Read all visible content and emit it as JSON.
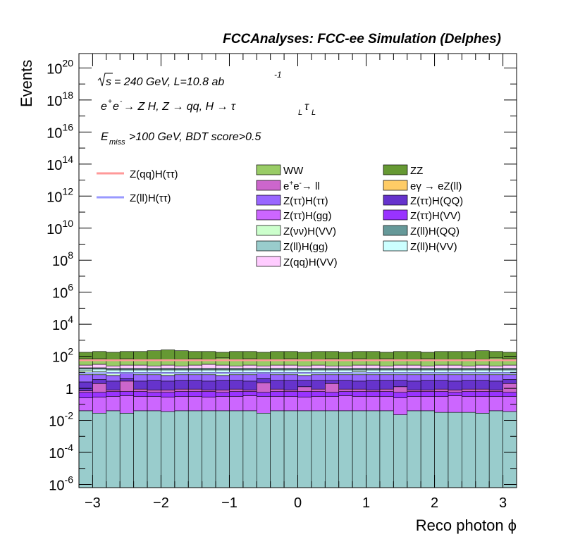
{
  "chart_data": {
    "type": "bar",
    "title": "FCCAnalyses: FCC-ee Simulation (Delphes)",
    "xlabel": "Reco photon ϕ",
    "ylabel": "Events",
    "xlim": [
      -3.2,
      3.2
    ],
    "ylim_log10": [
      -6.2,
      20.9
    ],
    "y_scale": "log",
    "stacked": true,
    "x_ticks": [
      "−3",
      "−2",
      "−1",
      "0",
      "1",
      "2",
      "3"
    ],
    "y_ticks": [
      {
        "base": "10",
        "exp": "20"
      },
      {
        "base": "10",
        "exp": "18"
      },
      {
        "base": "10",
        "exp": "16"
      },
      {
        "base": "10",
        "exp": "14"
      },
      {
        "base": "10",
        "exp": "12"
      },
      {
        "base": "10",
        "exp": "10"
      },
      {
        "base": "10",
        "exp": "8"
      },
      {
        "base": "10",
        "exp": "6"
      },
      {
        "base": "10",
        "exp": "4"
      },
      {
        "base": "10",
        "exp": "2"
      },
      {
        "base": "1",
        "exp": ""
      },
      {
        "base": "10",
        "exp": "-2"
      },
      {
        "base": "10",
        "exp": "-4"
      },
      {
        "base": "10",
        "exp": "-6"
      }
    ],
    "bin_edges": [
      -3.2,
      -3.0,
      -2.8,
      -2.6,
      -2.4,
      -2.2,
      -2.0,
      -1.8,
      -1.6,
      -1.4,
      -1.2,
      -1.0,
      -0.8,
      -0.6,
      -0.4,
      -0.2,
      0.0,
      0.2,
      0.4,
      0.6,
      0.8,
      1.0,
      1.2,
      1.4,
      1.6,
      1.8,
      2.0,
      2.2,
      2.4,
      2.6,
      2.8,
      3.0,
      3.2
    ],
    "stack_bottom_log10": -6.2,
    "stack_order": [
      "Z(ll)H(gg)",
      "eγ → eZ(ll)",
      "Z(ττ)H(gg)",
      "Z(ττ)H(VV)",
      "e+e- → ll",
      "Z(ττ)H(QQ)",
      "Z(ττ)H(ττ)",
      "Z(νν)H(VV)",
      "Z(ll)H(VV)",
      "Z(ll)H(QQ)",
      "Z(qq)H(VV)",
      "WW",
      "ZZ"
    ],
    "stack_top_log10": [
      [
        -1.4,
        -1.4,
        -1.4,
        -1.55,
        -1.4,
        -1.4,
        -1.45,
        -1.4,
        -1.4,
        -1.4,
        -1.4,
        -1.4,
        -1.4,
        -1.4,
        -1.4,
        -1.4,
        -1.4,
        -1.4,
        -1.4,
        -1.4,
        -1.4,
        -1.4,
        -1.4,
        -1.4,
        -1.4,
        -1.4,
        -1.4,
        -1.4,
        -1.4,
        -1.55,
        -1.4,
        -1.45
      ],
      [
        -1.4,
        -1.55,
        -1.4,
        -1.55,
        -1.4,
        -1.4,
        -1.45,
        -1.4,
        -1.4,
        -1.4,
        -1.4,
        -1.4,
        -1.4,
        -1.55,
        -1.4,
        -1.4,
        -1.4,
        -1.4,
        -1.4,
        -1.4,
        -1.4,
        -1.4,
        -1.4,
        -1.65,
        -1.4,
        -1.4,
        -1.5,
        -1.5,
        -1.5,
        -1.55,
        -1.4,
        -1.45
      ],
      [
        -0.6,
        -0.55,
        -0.5,
        -0.45,
        -0.5,
        -0.5,
        -0.55,
        -0.5,
        -0.5,
        -0.55,
        -0.5,
        -0.5,
        -0.45,
        -0.5,
        -0.5,
        -0.5,
        -0.55,
        -0.5,
        -0.5,
        -0.45,
        -0.5,
        -0.5,
        -0.5,
        -0.6,
        -0.5,
        -0.5,
        -0.5,
        -0.45,
        -0.5,
        -0.5,
        -0.5,
        -0.5
      ],
      [
        -0.25,
        -0.25,
        -0.2,
        -0.2,
        -0.2,
        -0.25,
        -0.25,
        -0.2,
        -0.2,
        -0.2,
        -0.25,
        -0.2,
        -0.2,
        -0.25,
        -0.2,
        -0.2,
        -0.2,
        -0.2,
        -0.25,
        -0.2,
        -0.2,
        -0.2,
        -0.2,
        -0.25,
        -0.2,
        -0.2,
        -0.2,
        -0.25,
        -0.2,
        -0.2,
        -0.2,
        -0.25
      ],
      [
        -0.15,
        0.3,
        -0.1,
        0.45,
        -0.05,
        -0.1,
        -0.1,
        -0.05,
        -0.05,
        -0.1,
        -0.1,
        -0.05,
        -0.1,
        0.35,
        -0.05,
        -0.1,
        0.1,
        -0.05,
        0.3,
        -0.05,
        -0.05,
        -0.1,
        -0.05,
        0.1,
        -0.1,
        -0.1,
        -0.05,
        -0.1,
        -0.05,
        -0.05,
        -0.1,
        0.3
      ],
      [
        0.4,
        0.55,
        0.45,
        0.6,
        0.45,
        0.5,
        0.45,
        0.5,
        0.5,
        0.45,
        0.5,
        0.5,
        0.45,
        0.6,
        0.5,
        0.5,
        0.5,
        0.5,
        0.5,
        0.5,
        0.45,
        0.5,
        0.5,
        0.5,
        0.45,
        0.5,
        0.5,
        0.45,
        0.5,
        0.5,
        0.45,
        0.55
      ],
      [
        0.85,
        0.85,
        0.8,
        0.9,
        0.85,
        0.85,
        0.8,
        0.85,
        0.85,
        0.85,
        0.8,
        0.85,
        0.85,
        0.9,
        0.85,
        0.85,
        0.8,
        0.85,
        0.85,
        0.85,
        0.85,
        0.85,
        0.85,
        0.85,
        0.85,
        0.85,
        0.85,
        0.85,
        0.85,
        0.85,
        0.85,
        0.85
      ],
      [
        1.1,
        1.05,
        1.0,
        1.0,
        1.0,
        1.0,
        1.0,
        1.0,
        1.0,
        1.0,
        1.0,
        1.0,
        1.0,
        1.0,
        1.0,
        1.0,
        1.0,
        1.0,
        1.0,
        1.0,
        1.05,
        1.0,
        1.0,
        1.0,
        1.0,
        1.0,
        1.0,
        1.0,
        1.0,
        1.0,
        1.0,
        1.0
      ],
      [
        1.2,
        1.2,
        1.15,
        1.15,
        1.15,
        1.15,
        1.15,
        1.15,
        1.15,
        1.15,
        1.15,
        1.15,
        1.15,
        1.15,
        1.15,
        1.15,
        1.15,
        1.15,
        1.15,
        1.15,
        1.15,
        1.15,
        1.15,
        1.15,
        1.15,
        1.15,
        1.15,
        1.15,
        1.15,
        1.15,
        1.15,
        1.15
      ],
      [
        1.28,
        1.28,
        1.25,
        1.25,
        1.25,
        1.25,
        1.25,
        1.25,
        1.25,
        1.25,
        1.25,
        1.25,
        1.25,
        1.25,
        1.25,
        1.25,
        1.25,
        1.25,
        1.25,
        1.25,
        1.25,
        1.25,
        1.25,
        1.25,
        1.25,
        1.25,
        1.25,
        1.25,
        1.25,
        1.25,
        1.25,
        1.25
      ],
      [
        1.45,
        1.5,
        1.4,
        1.45,
        1.45,
        1.4,
        1.45,
        1.4,
        1.45,
        1.5,
        1.45,
        1.4,
        1.45,
        1.4,
        1.45,
        1.45,
        1.4,
        1.45,
        1.4,
        1.4,
        1.45,
        1.45,
        1.4,
        1.45,
        1.45,
        1.4,
        1.45,
        1.45,
        1.4,
        1.45,
        1.4,
        1.45
      ],
      [
        1.85,
        1.85,
        1.8,
        1.85,
        1.8,
        1.8,
        1.75,
        1.8,
        1.85,
        1.8,
        1.9,
        1.8,
        1.85,
        1.8,
        1.8,
        1.85,
        1.8,
        1.8,
        1.85,
        1.8,
        1.85,
        1.8,
        1.85,
        1.8,
        1.8,
        1.85,
        1.8,
        1.8,
        1.85,
        1.8,
        1.9,
        1.85
      ],
      [
        2.25,
        2.3,
        2.25,
        2.3,
        2.3,
        2.35,
        2.4,
        2.35,
        2.3,
        2.3,
        2.25,
        2.3,
        2.3,
        2.25,
        2.3,
        2.3,
        2.25,
        2.3,
        2.3,
        2.25,
        2.3,
        2.3,
        2.25,
        2.3,
        2.3,
        2.25,
        2.3,
        2.3,
        2.3,
        2.35,
        2.3,
        2.25
      ]
    ],
    "series": [
      {
        "name": "WW",
        "color": "#99cc66"
      },
      {
        "name": "e+e- → ll",
        "color": "#cc66cc"
      },
      {
        "name": "Z(ττ)H(ττ)",
        "color": "#9966ff"
      },
      {
        "name": "Z(ττ)H(gg)",
        "color": "#cc66ff"
      },
      {
        "name": "Z(νν)H(VV)",
        "color": "#ccffcc"
      },
      {
        "name": "Z(ll)H(gg)",
        "color": "#99cccc"
      },
      {
        "name": "Z(qq)H(VV)",
        "color": "#ffccff"
      },
      {
        "name": "ZZ",
        "color": "#669933"
      },
      {
        "name": "eγ → eZ(ll)",
        "color": "#ffcc66"
      },
      {
        "name": "Z(ττ)H(QQ)",
        "color": "#6633cc"
      },
      {
        "name": "Z(ττ)H(VV)",
        "color": "#9933ff"
      },
      {
        "name": "Z(ll)H(QQ)",
        "color": "#669999"
      },
      {
        "name": "Z(ll)H(VV)",
        "color": "#ccffff"
      }
    ],
    "signal_lines": [
      {
        "name": "Z(qq)H(ττ)",
        "color": "#ff9999",
        "level_log10": 1.75
      },
      {
        "name": "Z(ll)H(ττ)",
        "color": "#9999ff",
        "level_log10": 0.95
      }
    ],
    "annotations": {
      "energy": "= 240 GeV, L=10.8 ab",
      "energy_sqrt_s": "s",
      "energy_exp": "-1",
      "process_a": "e",
      "process_b": "e",
      "process_c": " → Z H, Z  → qq, H  → τ",
      "process_sub1": "L",
      "process_tau2": "τ",
      "process_sub2": "L",
      "selection_e": "E",
      "selection_sub": "miss",
      "selection_rest": ">100 GeV, BDT score>0.5"
    },
    "legend_labels": {
      "ww": "WW",
      "zz": "ZZ",
      "eell_pre": "e",
      "eell_mid": "e",
      "eell_post": "→ ll",
      "egamma": "eγ → eZ(ll)",
      "ztthtt": "Z(ττ)H(ττ)",
      "ztthqq": "Z(ττ)H(QQ)",
      "ztthgg": "Z(ττ)H(gg)",
      "ztthvv": "Z(ττ)H(VV)",
      "znnhvv": "Z(νν)H(VV)",
      "zllhqq": "Z(ll)H(QQ)",
      "zllhgg": "Z(ll)H(gg)",
      "zllhvv": "Z(ll)H(VV)",
      "zqqhvv": "Z(qq)H(VV)",
      "sig_qq": "Z(qq)H(ττ)",
      "sig_ll": "Z(ll)H(ττ)"
    }
  }
}
